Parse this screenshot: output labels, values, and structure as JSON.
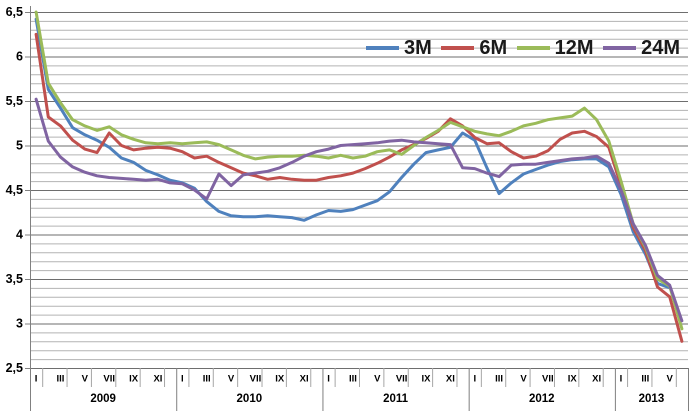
{
  "chart_data": {
    "type": "line",
    "title": "",
    "grid": {
      "minor_color": "#b3b3b3",
      "major_color": "#6e6e6e",
      "axis_color": "#808080",
      "tick_color": "#a6a6a6",
      "background": "#ffffff",
      "vertical_grid": false
    },
    "y_axis": {
      "min": 2.5,
      "max": 6.5,
      "major_step": 0.5,
      "minor_step": 0.1,
      "decimal_separator": ",",
      "tick_labels": [
        "2,5",
        "3",
        "3,5",
        "4",
        "4,5",
        "5",
        "5,5",
        "6",
        "6,5"
      ]
    },
    "x_axis": {
      "years": [
        {
          "label": "2009",
          "months": 12
        },
        {
          "label": "2010",
          "months": 12
        },
        {
          "label": "2011",
          "months": 12
        },
        {
          "label": "2012",
          "months": 12
        },
        {
          "label": "2013",
          "months": 6
        }
      ],
      "month_labels_pattern": [
        "I",
        "III",
        "V",
        "VII",
        "IX",
        "XI"
      ],
      "label_every_n_months": 2,
      "total_months": 54
    },
    "legend": {
      "position": "top",
      "items": [
        "3M",
        "6M",
        "12M",
        "24M"
      ]
    },
    "series": [
      {
        "name": "3M",
        "color": "#4f81bd",
        "values": [
          6.42,
          5.63,
          5.42,
          5.2,
          5.12,
          5.06,
          4.98,
          4.86,
          4.81,
          4.72,
          4.67,
          4.61,
          4.58,
          4.52,
          4.37,
          4.26,
          4.21,
          4.2,
          4.2,
          4.21,
          4.2,
          4.19,
          4.16,
          4.22,
          4.27,
          4.26,
          4.28,
          4.33,
          4.38,
          4.48,
          4.64,
          4.79,
          4.92,
          4.95,
          4.98,
          5.14,
          5.06,
          4.75,
          4.46,
          4.58,
          4.68,
          4.73,
          4.78,
          4.82,
          4.84,
          4.85,
          4.85,
          4.76,
          4.45,
          4.03,
          3.78,
          3.45,
          3.4,
          null
        ]
      },
      {
        "name": "6M",
        "color": "#c0504d",
        "values": [
          6.25,
          5.32,
          5.22,
          5.06,
          4.96,
          4.92,
          5.14,
          5.0,
          4.95,
          4.97,
          4.98,
          4.97,
          4.93,
          4.86,
          4.88,
          4.81,
          4.75,
          4.69,
          4.66,
          4.62,
          4.64,
          4.62,
          4.61,
          4.61,
          4.64,
          4.66,
          4.69,
          4.74,
          4.8,
          4.87,
          4.95,
          5.01,
          5.08,
          5.16,
          5.3,
          5.22,
          5.09,
          5.02,
          5.03,
          4.93,
          4.86,
          4.88,
          4.94,
          5.07,
          5.14,
          5.16,
          5.1,
          4.98,
          4.55,
          4.08,
          3.82,
          3.41,
          3.3,
          2.8
        ]
      },
      {
        "name": "12M",
        "color": "#9bbb59",
        "values": [
          6.5,
          5.7,
          5.48,
          5.29,
          5.22,
          5.17,
          5.21,
          5.12,
          5.07,
          5.03,
          5.02,
          5.03,
          5.02,
          5.03,
          5.04,
          5.01,
          4.95,
          4.89,
          4.85,
          4.87,
          4.88,
          4.88,
          4.89,
          4.88,
          4.86,
          4.89,
          4.86,
          4.88,
          4.93,
          4.95,
          4.9,
          5.0,
          5.09,
          5.17,
          5.26,
          5.21,
          5.16,
          5.13,
          5.11,
          5.16,
          5.22,
          5.25,
          5.29,
          5.31,
          5.33,
          5.42,
          5.29,
          5.05,
          4.6,
          4.12,
          3.86,
          3.5,
          3.42,
          2.94
        ]
      },
      {
        "name": "24M",
        "color": "#8064a2",
        "values": [
          5.52,
          5.05,
          4.87,
          4.76,
          4.7,
          4.66,
          4.64,
          4.63,
          4.62,
          4.61,
          4.62,
          4.58,
          4.57,
          4.5,
          4.4,
          4.68,
          4.55,
          4.67,
          4.69,
          4.71,
          4.75,
          4.81,
          4.88,
          4.93,
          4.96,
          5.0,
          5.01,
          5.02,
          5.03,
          5.05,
          5.06,
          5.04,
          5.03,
          5.02,
          5.01,
          4.75,
          4.74,
          4.69,
          4.65,
          4.78,
          4.79,
          4.79,
          4.81,
          4.83,
          4.85,
          4.86,
          4.88,
          4.8,
          4.5,
          4.12,
          3.88,
          3.54,
          3.43,
          3.03
        ]
      }
    ]
  }
}
